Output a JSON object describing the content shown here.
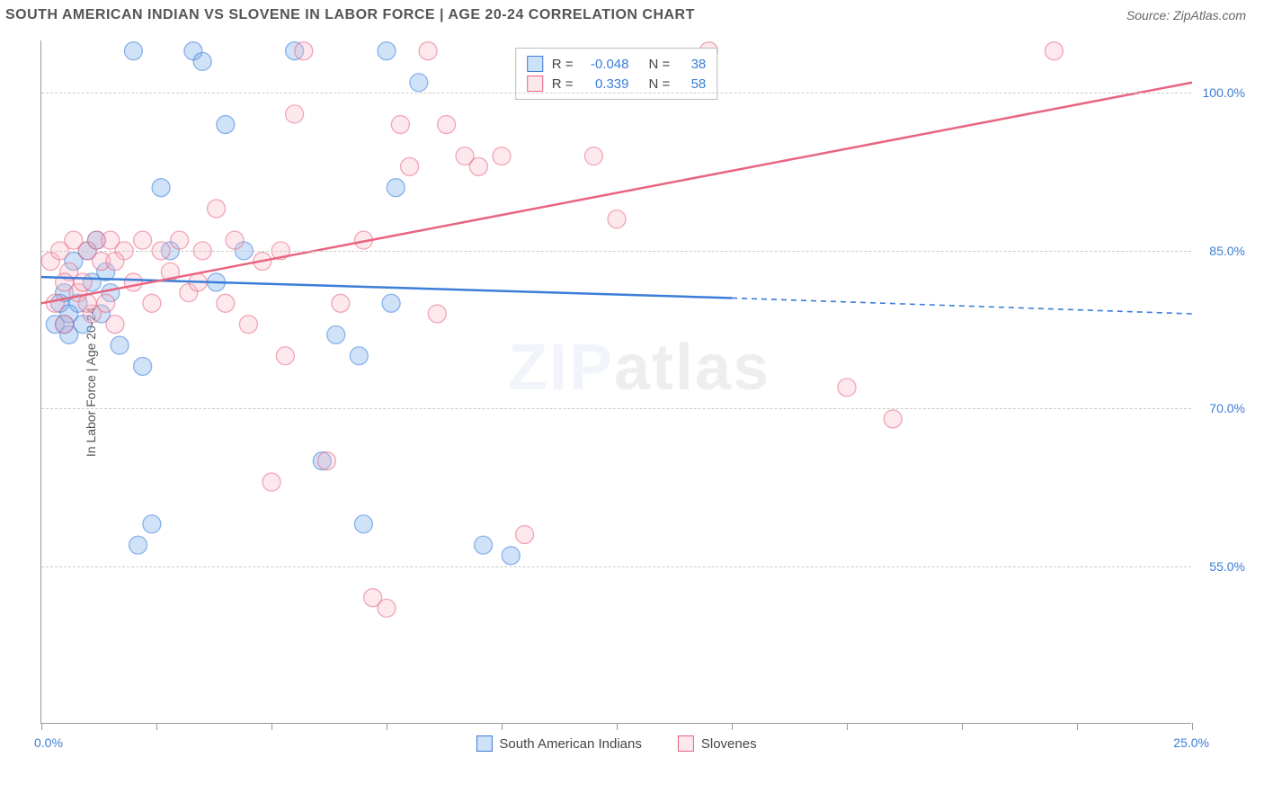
{
  "header": {
    "title": "SOUTH AMERICAN INDIAN VS SLOVENE IN LABOR FORCE | AGE 20-24 CORRELATION CHART",
    "source_label": "Source: ZipAtlas.com"
  },
  "chart": {
    "type": "scatter",
    "y_axis_title": "In Labor Force | Age 20-24",
    "xlim": [
      0,
      25
    ],
    "ylim": [
      40,
      105
    ],
    "y_ticks": [
      55.0,
      70.0,
      85.0,
      100.0
    ],
    "y_tick_labels": [
      "55.0%",
      "70.0%",
      "85.0%",
      "100.0%"
    ],
    "x_ticks": [
      0,
      2.5,
      5,
      7.5,
      10,
      12.5,
      15,
      17.5,
      20,
      22.5,
      25
    ],
    "x_origin_label": "0.0%",
    "x_max_label": "25.0%",
    "background_color": "#ffffff",
    "grid_color": "#cccccc",
    "point_radius": 10,
    "point_opacity": 0.32,
    "series": [
      {
        "name": "South American Indians",
        "color": "#6aa4e8",
        "stroke": "#3b7dd8",
        "R": "-0.048",
        "N": "38",
        "trend": {
          "x1": 0,
          "y1": 82.5,
          "x2": 15,
          "y2": 80.5,
          "extrap_x2": 25,
          "extrap_y2": 79.0
        },
        "points": [
          [
            0.3,
            78
          ],
          [
            0.4,
            80
          ],
          [
            0.5,
            78
          ],
          [
            0.5,
            81
          ],
          [
            0.6,
            77
          ],
          [
            0.7,
            84
          ],
          [
            0.8,
            80
          ],
          [
            0.9,
            78
          ],
          [
            1.0,
            85
          ],
          [
            1.1,
            82
          ],
          [
            1.2,
            86
          ],
          [
            1.3,
            79
          ],
          [
            1.5,
            81
          ],
          [
            1.7,
            76
          ],
          [
            2.0,
            104
          ],
          [
            2.1,
            57
          ],
          [
            2.2,
            74
          ],
          [
            2.4,
            59
          ],
          [
            2.6,
            91
          ],
          [
            2.8,
            85
          ],
          [
            3.3,
            104
          ],
          [
            3.5,
            103
          ],
          [
            3.8,
            82
          ],
          [
            4.0,
            97
          ],
          [
            4.4,
            85
          ],
          [
            5.5,
            104
          ],
          [
            6.1,
            65
          ],
          [
            6.4,
            77
          ],
          [
            6.9,
            75
          ],
          [
            7.0,
            59
          ],
          [
            7.5,
            104
          ],
          [
            7.6,
            80
          ],
          [
            7.7,
            91
          ],
          [
            8.2,
            101
          ],
          [
            9.6,
            57
          ],
          [
            10.2,
            56
          ],
          [
            0.6,
            79
          ],
          [
            1.4,
            83
          ]
        ]
      },
      {
        "name": "Slovenes",
        "color": "#f6b8c6",
        "stroke": "#e8657f",
        "R": "0.339",
        "N": "58",
        "trend": {
          "x1": 0,
          "y1": 80.0,
          "x2": 25,
          "y2": 101.0
        },
        "points": [
          [
            0.2,
            84
          ],
          [
            0.3,
            80
          ],
          [
            0.4,
            85
          ],
          [
            0.5,
            78
          ],
          [
            0.6,
            83
          ],
          [
            0.7,
            86
          ],
          [
            0.8,
            81
          ],
          [
            0.9,
            82
          ],
          [
            1.0,
            85
          ],
          [
            1.1,
            79
          ],
          [
            1.2,
            86
          ],
          [
            1.3,
            84
          ],
          [
            1.4,
            80
          ],
          [
            1.5,
            86
          ],
          [
            1.6,
            78
          ],
          [
            1.8,
            85
          ],
          [
            2.0,
            82
          ],
          [
            2.2,
            86
          ],
          [
            2.4,
            80
          ],
          [
            2.6,
            85
          ],
          [
            2.8,
            83
          ],
          [
            3.0,
            86
          ],
          [
            3.2,
            81
          ],
          [
            3.5,
            85
          ],
          [
            3.8,
            89
          ],
          [
            4.0,
            80
          ],
          [
            4.2,
            86
          ],
          [
            4.5,
            78
          ],
          [
            5.0,
            63
          ],
          [
            5.2,
            85
          ],
          [
            5.5,
            98
          ],
          [
            5.3,
            75
          ],
          [
            5.7,
            104
          ],
          [
            6.2,
            65
          ],
          [
            6.5,
            80
          ],
          [
            7.0,
            86
          ],
          [
            7.2,
            52
          ],
          [
            7.5,
            51
          ],
          [
            7.8,
            97
          ],
          [
            8.0,
            93
          ],
          [
            8.4,
            104
          ],
          [
            8.6,
            79
          ],
          [
            8.8,
            97
          ],
          [
            9.2,
            94
          ],
          [
            9.5,
            93
          ],
          [
            10.0,
            94
          ],
          [
            10.5,
            58
          ],
          [
            12.0,
            94
          ],
          [
            12.5,
            88
          ],
          [
            14.5,
            104
          ],
          [
            17.5,
            72
          ],
          [
            18.5,
            69
          ],
          [
            22.0,
            104
          ],
          [
            0.5,
            82
          ],
          [
            1.0,
            80
          ],
          [
            1.6,
            84
          ],
          [
            3.4,
            82
          ],
          [
            4.8,
            84
          ]
        ]
      }
    ],
    "legend": {
      "items": [
        "South American Indians",
        "Slovenes"
      ]
    },
    "correlation_box": {
      "r_label": "R =",
      "n_label": "N ="
    },
    "watermark": {
      "part1": "ZIP",
      "part2": "atlas"
    }
  }
}
